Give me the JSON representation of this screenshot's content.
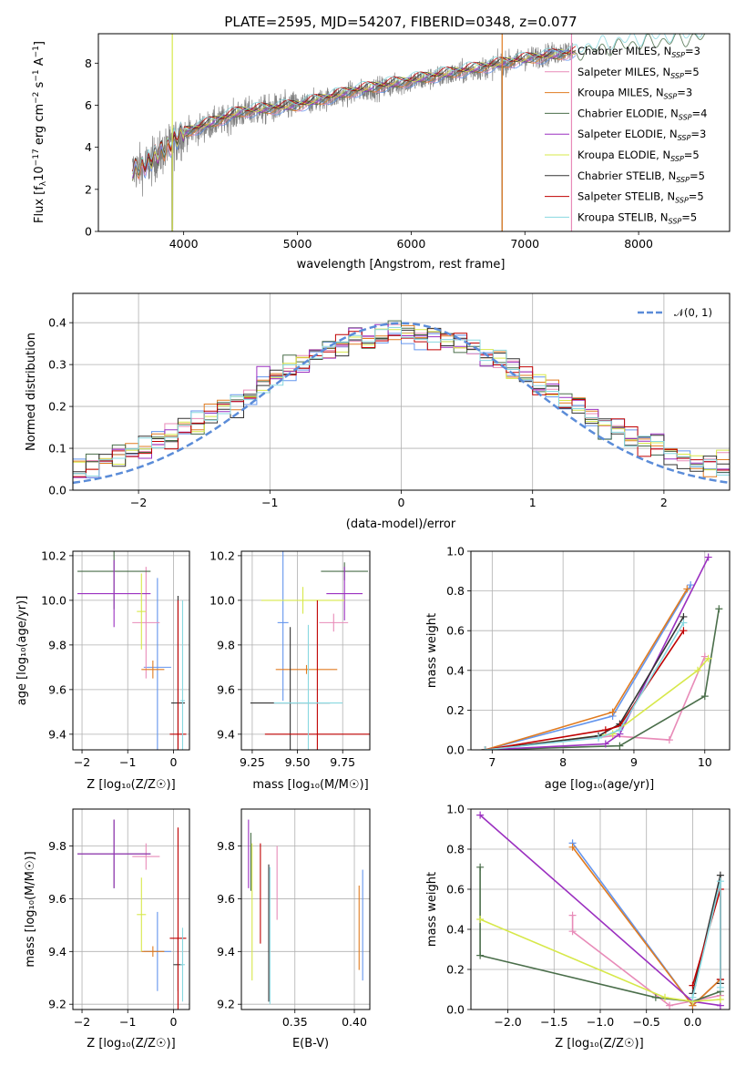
{
  "figure": {
    "title": "PLATE=2595, MJD=54207, FIBERID=0348, z=0.077"
  },
  "colors": {
    "spectrum_data": "#808080",
    "series": [
      "#6495ed",
      "#e88bb8",
      "#e07b20",
      "#4a6e4a",
      "#9b30c0",
      "#d7e84a",
      "#333333",
      "#c00000",
      "#88d8e0"
    ],
    "gaussian": "#5b8cd8"
  },
  "models": [
    {
      "name": "Chabrier MILES",
      "nssp": "3"
    },
    {
      "name": "Salpeter MILES",
      "nssp": "5"
    },
    {
      "name": "Kroupa MILES",
      "nssp": "3"
    },
    {
      "name": "Chabrier ELODIE",
      "nssp": "4"
    },
    {
      "name": "Salpeter ELODIE",
      "nssp": "3"
    },
    {
      "name": "Kroupa ELODIE",
      "nssp": "5"
    },
    {
      "name": "Chabrier STELIB",
      "nssp": "5"
    },
    {
      "name": "Salpeter STELIB",
      "nssp": "5"
    },
    {
      "name": "Kroupa STELIB",
      "nssp": "5"
    }
  ],
  "chart_data": [
    {
      "id": "spectrum",
      "type": "line",
      "xlabel": "wavelength [Angstrom, rest frame]",
      "ylabel_main": "Flux [f",
      "ylabel_mid": "10",
      "ylabel_exp": "−17",
      "ylabel_units": " erg cm",
      "xlim": [
        3250,
        8800
      ],
      "ylim": [
        0,
        9.4
      ],
      "xticks": [
        4000,
        5000,
        6000,
        7000,
        8000
      ],
      "xticklabels": [
        "4000",
        "5000",
        "6000",
        "7000",
        "8000"
      ],
      "yticks": [
        0,
        2,
        4,
        6,
        8
      ],
      "yticklabels": [
        "0",
        "2",
        "4",
        "6",
        "8"
      ],
      "data_trend": {
        "x": [
          3550,
          3700,
          4000,
          4500,
          5000,
          5500,
          6000,
          6500,
          7000,
          7400
        ],
        "y": [
          2.9,
          3.2,
          4.6,
          5.6,
          6.0,
          6.6,
          7.1,
          7.6,
          8.2,
          8.6
        ]
      },
      "model_trend": {
        "x": [
          3550,
          3700,
          4000,
          4500,
          5000,
          5500,
          6000,
          6500,
          7000,
          7400,
          8000,
          8600
        ],
        "y": [
          2.9,
          3.3,
          4.7,
          5.7,
          6.0,
          6.7,
          7.2,
          7.7,
          8.2,
          8.5,
          9.0,
          9.3
        ]
      },
      "dips": [
        {
          "x": 3900
        },
        {
          "x": 6800
        },
        {
          "x": 7410
        }
      ]
    },
    {
      "id": "residuals",
      "type": "histogram",
      "xlabel": "(data-model)/error",
      "ylabel": "Normed distribution",
      "xlim": [
        -2.5,
        2.5
      ],
      "ylim": [
        0,
        0.47
      ],
      "xticks": [
        -2,
        -1,
        0,
        1,
        2
      ],
      "xticklabels": [
        "−2",
        "−1",
        "0",
        "1",
        "2"
      ],
      "yticks": [
        0,
        0.1,
        0.2,
        0.3,
        0.4
      ],
      "yticklabels": [
        "0.0",
        "0.1",
        "0.2",
        "0.3",
        "0.4"
      ],
      "bin_width": 0.1,
      "bin_start": -2.5,
      "gaussian": {
        "label": "𝒩(0, 1)",
        "mu": 0,
        "sigma": 1
      }
    },
    {
      "id": "age-vs-z",
      "type": "errorbar",
      "xlabel": "Z [log₁₀(Z/Z☉)]",
      "ylabel": "age  [log₁₀(age/yr)]",
      "xlim": [
        -2.2,
        0.35
      ],
      "ylim": [
        9.33,
        10.22
      ],
      "xticks": [
        -2,
        -1,
        0
      ],
      "xticklabels": [
        "−2",
        "−1",
        "0"
      ],
      "yticks": [
        9.4,
        9.6,
        9.8,
        10.0,
        10.2
      ],
      "yticklabels": [
        "9.4",
        "9.6",
        "9.8",
        "10.0",
        "10.2"
      ],
      "points": [
        {
          "s": 0,
          "x": -0.35,
          "y": 9.7,
          "xerr": 0.3,
          "yerr": 0.4
        },
        {
          "s": 1,
          "x": -0.6,
          "y": 9.9,
          "xerr": 0.3,
          "yerr": 0.25
        },
        {
          "s": 2,
          "x": -0.45,
          "y": 9.69,
          "xerr": 0.25,
          "yerr": 0.04
        },
        {
          "s": 3,
          "x": -1.3,
          "y": 10.13,
          "xerr": 0.8,
          "yerr": 0.17
        },
        {
          "s": 4,
          "x": -1.3,
          "y": 10.03,
          "xerr": 0.8,
          "yerr": 0.15
        },
        {
          "s": 5,
          "x": -0.7,
          "y": 9.95,
          "xerr": 0.1,
          "yerr": 0.17
        },
        {
          "s": 6,
          "x": 0.1,
          "y": 9.54,
          "xerr": 0.15,
          "yerr": 0.48
        },
        {
          "s": 7,
          "x": 0.1,
          "y": 9.4,
          "xerr": 0.18,
          "yerr": 0.6
        },
        {
          "s": 8,
          "x": 0.2,
          "y": 9.55,
          "xerr": 0.05,
          "yerr": 0.45
        }
      ]
    },
    {
      "id": "age-vs-mass",
      "type": "errorbar",
      "xlabel": "mass [log₁₀(M/M☉)]",
      "ylabel": "",
      "xlim": [
        9.19,
        9.9
      ],
      "ylim": [
        9.33,
        10.22
      ],
      "xticks": [
        9.25,
        9.5,
        9.75
      ],
      "xticklabels": [
        "9.25",
        "9.50",
        "9.75"
      ],
      "yticks": [
        9.4,
        9.6,
        9.8,
        10.0,
        10.2
      ],
      "yticklabels": [
        "9.4",
        "9.6",
        "9.8",
        "10.0",
        "10.2"
      ],
      "points": [
        {
          "s": 0,
          "x": 9.42,
          "y": 9.9,
          "xerr": 0.03,
          "yerr": 0.35
        },
        {
          "s": 1,
          "x": 9.7,
          "y": 9.9,
          "xerr": 0.08,
          "yerr": 0.04
        },
        {
          "s": 2,
          "x": 9.55,
          "y": 9.69,
          "xerr": 0.17,
          "yerr": 0.02
        },
        {
          "s": 3,
          "x": 9.76,
          "y": 10.13,
          "xerr": 0.13,
          "yerr": 0.04
        },
        {
          "s": 4,
          "x": 9.76,
          "y": 10.03,
          "xerr": 0.1,
          "yerr": 0.12
        },
        {
          "s": 5,
          "x": 9.53,
          "y": 10.0,
          "xerr": 0.23,
          "yerr": 0.06
        },
        {
          "s": 6,
          "x": 9.46,
          "y": 9.54,
          "xerr": 0.22,
          "yerr": 0.34
        },
        {
          "s": 7,
          "x": 9.61,
          "y": 9.4,
          "xerr": 0.29,
          "yerr": 0.6
        },
        {
          "s": 8,
          "x": 9.56,
          "y": 9.54,
          "xerr": 0.19,
          "yerr": 0.35
        }
      ]
    },
    {
      "id": "weight-vs-age",
      "type": "line",
      "xlabel": "age  [log₁₀(age/yr)]",
      "ylabel": "mass weight",
      "xlim": [
        6.7,
        10.35
      ],
      "ylim": [
        0,
        1
      ],
      "xticks": [
        7,
        8,
        9,
        10
      ],
      "xticklabels": [
        "7",
        "8",
        "9",
        "10"
      ],
      "yticks": [
        0,
        0.2,
        0.4,
        0.6,
        0.8,
        1.0
      ],
      "yticklabels": [
        "0.0",
        "0.2",
        "0.4",
        "0.6",
        "0.8",
        "1.0"
      ],
      "series": [
        {
          "s": 0,
          "x": [
            6.9,
            8.7,
            9.8
          ],
          "y": [
            0.0,
            0.17,
            0.83
          ]
        },
        {
          "s": 1,
          "x": [
            6.9,
            8.7,
            9.5,
            10.0
          ],
          "y": [
            0.0,
            0.07,
            0.05,
            0.47
          ]
        },
        {
          "s": 2,
          "x": [
            6.9,
            8.7,
            9.75
          ],
          "y": [
            0.0,
            0.19,
            0.81
          ]
        },
        {
          "s": 3,
          "x": [
            6.9,
            8.8,
            10.0,
            10.2
          ],
          "y": [
            0.0,
            0.02,
            0.27,
            0.71
          ]
        },
        {
          "s": 4,
          "x": [
            6.9,
            8.6,
            8.8,
            10.05
          ],
          "y": [
            0.0,
            0.03,
            0.08,
            0.97
          ]
        },
        {
          "s": 5,
          "x": [
            6.9,
            8.7,
            9.9,
            10.05
          ],
          "y": [
            0.0,
            0.08,
            0.4,
            0.46
          ]
        },
        {
          "s": 6,
          "x": [
            6.9,
            8.5,
            8.8,
            9.7
          ],
          "y": [
            0.0,
            0.07,
            0.13,
            0.67
          ]
        },
        {
          "s": 7,
          "x": [
            6.9,
            8.6,
            8.8,
            9.7
          ],
          "y": [
            0.0,
            0.1,
            0.12,
            0.6
          ]
        },
        {
          "s": 8,
          "x": [
            6.9,
            8.5,
            8.8,
            9.7
          ],
          "y": [
            0.0,
            0.06,
            0.1,
            0.64
          ]
        }
      ]
    },
    {
      "id": "mass-vs-z",
      "type": "errorbar",
      "xlabel": "Z [log₁₀(Z/Z☉)]",
      "ylabel": "mass [log₁₀(M/M☉)]",
      "xlim": [
        -2.2,
        0.35
      ],
      "ylim": [
        9.18,
        9.94
      ],
      "xticks": [
        -2,
        -1,
        0
      ],
      "xticklabels": [
        "−2",
        "−1",
        "0"
      ],
      "yticks": [
        9.2,
        9.4,
        9.6,
        9.8
      ],
      "yticklabels": [
        "9.2",
        "9.4",
        "9.6",
        "9.8"
      ],
      "points": [
        {
          "s": 0,
          "x": -0.35,
          "y": 9.4,
          "xerr": 0.3,
          "yerr": 0.15
        },
        {
          "s": 1,
          "x": -0.6,
          "y": 9.76,
          "xerr": 0.3,
          "yerr": 0.05
        },
        {
          "s": 2,
          "x": -0.45,
          "y": 9.4,
          "xerr": 0.25,
          "yerr": 0.02
        },
        {
          "s": 3,
          "x": -1.3,
          "y": 9.77,
          "xerr": 0.8,
          "yerr": 0.13
        },
        {
          "s": 4,
          "x": -1.3,
          "y": 9.77,
          "xerr": 0.8,
          "yerr": 0.13
        },
        {
          "s": 5,
          "x": -0.7,
          "y": 9.54,
          "xerr": 0.1,
          "yerr": 0.14
        },
        {
          "s": 6,
          "x": 0.1,
          "y": 9.35,
          "xerr": 0.1,
          "yerr": 0.1
        },
        {
          "s": 7,
          "x": 0.1,
          "y": 9.45,
          "xerr": 0.18,
          "yerr": 0.42
        },
        {
          "s": 8,
          "x": 0.2,
          "y": 9.35,
          "xerr": 0.05,
          "yerr": 0.14
        }
      ]
    },
    {
      "id": "mass-vs-ebv",
      "type": "errorbar",
      "xlabel": "E(B-V)",
      "ylabel": "",
      "xlim": [
        0.305,
        0.413
      ],
      "ylim": [
        9.18,
        9.94
      ],
      "xticks": [
        0.35,
        0.4
      ],
      "xticklabels": [
        "0.35",
        "0.40"
      ],
      "yticks": [
        9.2,
        9.4,
        9.6,
        9.8
      ],
      "yticklabels": [
        "9.2",
        "9.4",
        "9.6",
        "9.8"
      ],
      "points": [
        {
          "s": 0,
          "x": 0.407,
          "y": 9.5,
          "xerr": 0,
          "yerr": 0.21
        },
        {
          "s": 1,
          "x": 0.335,
          "y": 9.66,
          "xerr": 0,
          "yerr": 0.14
        },
        {
          "s": 2,
          "x": 0.404,
          "y": 9.49,
          "xerr": 0,
          "yerr": 0.16
        },
        {
          "s": 3,
          "x": 0.313,
          "y": 9.74,
          "xerr": 0,
          "yerr": 0.11
        },
        {
          "s": 4,
          "x": 0.311,
          "y": 9.77,
          "xerr": 0,
          "yerr": 0.13
        },
        {
          "s": 5,
          "x": 0.314,
          "y": 9.55,
          "xerr": 0,
          "yerr": 0.26
        },
        {
          "s": 6,
          "x": 0.328,
          "y": 9.47,
          "xerr": 0,
          "yerr": 0.26
        },
        {
          "s": 7,
          "x": 0.321,
          "y": 9.62,
          "xerr": 0,
          "yerr": 0.19
        },
        {
          "s": 8,
          "x": 0.329,
          "y": 9.46,
          "xerr": 0,
          "yerr": 0.26
        }
      ]
    },
    {
      "id": "weight-vs-z",
      "type": "line",
      "xlabel": "Z [log₁₀(Z/Z☉)]",
      "ylabel": "mass weight",
      "xlim": [
        -2.4,
        0.4
      ],
      "ylim": [
        0,
        1
      ],
      "xticks": [
        -2.0,
        -1.5,
        -1.0,
        -0.5,
        0.0
      ],
      "xticklabels": [
        "−2.0",
        "−1.5",
        "−1.0",
        "−0.5",
        "0.0"
      ],
      "yticks": [
        0,
        0.2,
        0.4,
        0.6,
        0.8,
        1.0
      ],
      "yticklabels": [
        "0.0",
        "0.2",
        "0.4",
        "0.6",
        "0.8",
        "1.0"
      ],
      "series": [
        {
          "s": 0,
          "x": [
            -1.3,
            0.0,
            0.3
          ],
          "y": [
            0.83,
            0.02,
            0.15
          ]
        },
        {
          "s": 1,
          "x": [
            -1.3,
            -1.3,
            -0.25,
            0.3
          ],
          "y": [
            0.47,
            0.39,
            0.02,
            0.07
          ]
        },
        {
          "s": 2,
          "x": [
            -1.3,
            0.0,
            0.3
          ],
          "y": [
            0.81,
            0.02,
            0.15
          ]
        },
        {
          "s": 3,
          "x": [
            -2.3,
            -2.3,
            -0.4,
            0.0,
            0.3
          ],
          "y": [
            0.71,
            0.27,
            0.06,
            0.04,
            0.09
          ]
        },
        {
          "s": 4,
          "x": [
            -2.3,
            0.0,
            0.3
          ],
          "y": [
            0.97,
            0.04,
            0.02
          ]
        },
        {
          "s": 5,
          "x": [
            -2.3,
            -0.3,
            0.0,
            0.3
          ],
          "y": [
            0.45,
            0.06,
            0.04,
            0.05
          ]
        },
        {
          "s": 6,
          "x": [
            0.0,
            0.3,
            0.3
          ],
          "y": [
            0.08,
            0.67,
            0.13
          ]
        },
        {
          "s": 7,
          "x": [
            0.0,
            0.3,
            0.3
          ],
          "y": [
            0.12,
            0.6,
            0.15
          ]
        },
        {
          "s": 8,
          "x": [
            0.0,
            0.3,
            0.3
          ],
          "y": [
            0.06,
            0.64,
            0.11
          ]
        }
      ]
    }
  ]
}
